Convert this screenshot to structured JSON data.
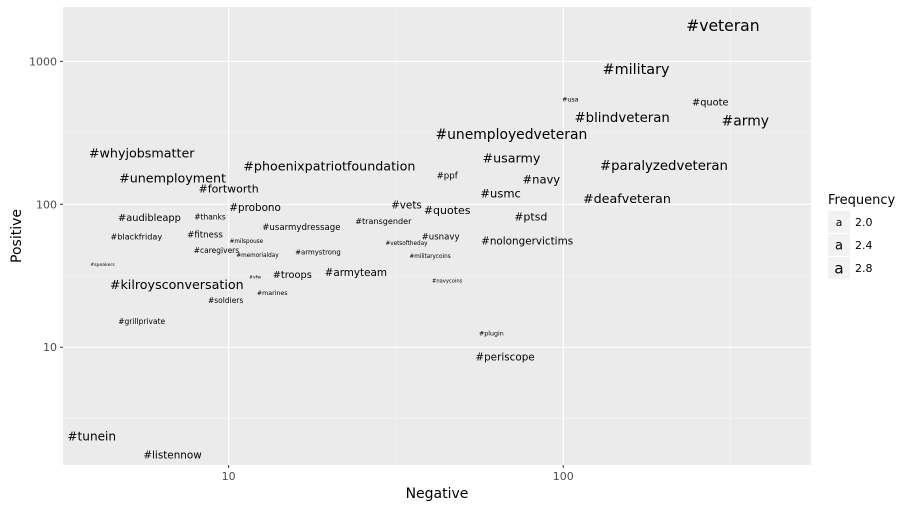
{
  "chart_data": {
    "type": "scatter",
    "xlabel": "Negative",
    "ylabel": "Positive",
    "x_scale": "log10",
    "y_scale": "log10",
    "xlim": [
      3.2,
      550
    ],
    "ylim": [
      1.5,
      2400
    ],
    "x_ticks": [
      10,
      100
    ],
    "y_ticks": [
      10,
      100,
      1000
    ],
    "grid": true,
    "legend": {
      "title": "Frequency",
      "position": "right",
      "symbol": "a",
      "entries": [
        {
          "label": "2.0",
          "value": 2.0
        },
        {
          "label": "2.4",
          "value": 2.4
        },
        {
          "label": "2.8",
          "value": 2.8
        }
      ]
    },
    "points": [
      {
        "label": "#veteran",
        "x": 300,
        "y": 1750,
        "size": 3.0
      },
      {
        "label": "#military",
        "x": 165,
        "y": 870,
        "size": 2.8
      },
      {
        "label": "#usa",
        "x": 105,
        "y": 540,
        "size": 1.4
      },
      {
        "label": "#quote",
        "x": 275,
        "y": 515,
        "size": 2.0
      },
      {
        "label": "#blindveteran",
        "x": 150,
        "y": 400,
        "size": 2.6
      },
      {
        "label": "#army",
        "x": 350,
        "y": 380,
        "size": 2.7
      },
      {
        "label": "#unemployedveteran",
        "x": 70,
        "y": 305,
        "size": 2.7
      },
      {
        "label": "#whyjobsmatter",
        "x": 5.5,
        "y": 225,
        "size": 2.5
      },
      {
        "label": "#usarmy",
        "x": 70,
        "y": 207,
        "size": 2.5
      },
      {
        "label": "#paralyzedveteran",
        "x": 200,
        "y": 185,
        "size": 2.6
      },
      {
        "label": "#phoenixpatriotfoundation",
        "x": 20,
        "y": 182,
        "size": 2.5
      },
      {
        "label": "#unemployment",
        "x": 6.8,
        "y": 150,
        "size": 2.5
      },
      {
        "label": "#ppf",
        "x": 45,
        "y": 158,
        "size": 1.8
      },
      {
        "label": "#navy",
        "x": 86,
        "y": 148,
        "size": 2.3
      },
      {
        "label": "#fortworth",
        "x": 10,
        "y": 127,
        "size": 2.2
      },
      {
        "label": "#usmc",
        "x": 65,
        "y": 118,
        "size": 2.3
      },
      {
        "label": "#deafveteran",
        "x": 155,
        "y": 108,
        "size": 2.5
      },
      {
        "label": "#vets",
        "x": 34,
        "y": 98,
        "size": 2.1
      },
      {
        "label": "#probono",
        "x": 12,
        "y": 94,
        "size": 2.1
      },
      {
        "label": "#quotes",
        "x": 45,
        "y": 90,
        "size": 2.2
      },
      {
        "label": "#audibleapp",
        "x": 5.8,
        "y": 80,
        "size": 2.0
      },
      {
        "label": "#thanks",
        "x": 8.8,
        "y": 81,
        "size": 1.6
      },
      {
        "label": "#ptsd",
        "x": 80,
        "y": 81,
        "size": 2.2
      },
      {
        "label": "#transgender",
        "x": 29,
        "y": 76,
        "size": 1.7
      },
      {
        "label": "#usarmydressage",
        "x": 16.5,
        "y": 69,
        "size": 1.8
      },
      {
        "label": "#fitness",
        "x": 8.5,
        "y": 61,
        "size": 1.8
      },
      {
        "label": "#usnavy",
        "x": 43,
        "y": 59,
        "size": 1.8
      },
      {
        "label": "#blackfriday",
        "x": 5.3,
        "y": 59,
        "size": 1.7
      },
      {
        "label": "#nolongervictims",
        "x": 78,
        "y": 55,
        "size": 2.1
      },
      {
        "label": "#milspouse",
        "x": 11.3,
        "y": 55,
        "size": 1.3
      },
      {
        "label": "#vetsoftheday",
        "x": 34,
        "y": 53,
        "size": 1.3
      },
      {
        "label": "#caregivers",
        "x": 9.2,
        "y": 47,
        "size": 1.6
      },
      {
        "label": "#armystrong",
        "x": 18.5,
        "y": 46,
        "size": 1.5
      },
      {
        "label": "#memorialday",
        "x": 12.2,
        "y": 44,
        "size": 1.3
      },
      {
        "label": "#militarycoins",
        "x": 40,
        "y": 43,
        "size": 1.3
      },
      {
        "label": "#speakers",
        "x": 4.2,
        "y": 38,
        "size": 1.1
      },
      {
        "label": "#troops",
        "x": 15.5,
        "y": 32,
        "size": 2.0
      },
      {
        "label": "#armyteam",
        "x": 24,
        "y": 33,
        "size": 2.1
      },
      {
        "label": "#vfw",
        "x": 12.0,
        "y": 31,
        "size": 1.1
      },
      {
        "label": "#navycoins",
        "x": 45,
        "y": 29,
        "size": 1.2
      },
      {
        "label": "#kilroysconversation",
        "x": 7.0,
        "y": 27,
        "size": 2.5
      },
      {
        "label": "#marines",
        "x": 13.5,
        "y": 24,
        "size": 1.4
      },
      {
        "label": "#soldiers",
        "x": 9.8,
        "y": 21,
        "size": 1.6
      },
      {
        "label": "#grillprivate",
        "x": 5.5,
        "y": 15,
        "size": 1.6
      },
      {
        "label": "#plugin",
        "x": 61,
        "y": 12.5,
        "size": 1.4
      },
      {
        "label": "#periscope",
        "x": 67,
        "y": 8.5,
        "size": 2.1
      },
      {
        "label": "#tunein",
        "x": 3.9,
        "y": 2.35,
        "size": 2.4
      },
      {
        "label": "#listennow",
        "x": 6.8,
        "y": 1.75,
        "size": 2.1
      }
    ]
  }
}
